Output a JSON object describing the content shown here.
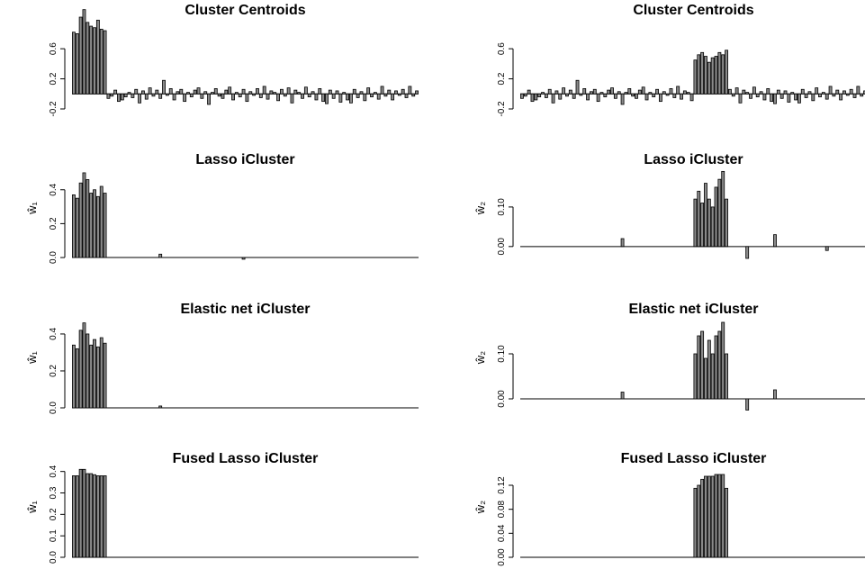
{
  "chart_data": [
    {
      "type": "bar",
      "title": "Cluster Centroids",
      "color": "#8a8a8a",
      "ylim": [
        -0.2,
        1.14
      ],
      "yticks": [
        -0.2,
        0.2,
        0.6
      ],
      "values": [
        0.82,
        0.8,
        1.02,
        1.12,
        0.95,
        0.9,
        0.88,
        0.98,
        0.86,
        0.84,
        -0.06,
        -0.03,
        0.05,
        -0.1,
        -0.08,
        -0.04,
        0.02,
        -0.05,
        0.06,
        -0.12,
        0.04,
        -0.07,
        0.08,
        -0.03,
        0.05,
        -0.06,
        0.18,
        -0.02,
        0.07,
        -0.08,
        0.03,
        0.06,
        -0.1,
        0.02,
        -0.04,
        0.05,
        0.08,
        -0.06,
        0.03,
        -0.14,
        0.02,
        0.07,
        -0.03,
        -0.06,
        0.05,
        0.09,
        -0.08,
        0.02,
        -0.04,
        0.06,
        -0.1,
        0.03,
        -0.02,
        0.07,
        -0.05,
        0.1,
        -0.07,
        0.04,
        0.02,
        -0.09,
        0.06,
        -0.03,
        0.08,
        -0.12,
        0.05,
        0.02,
        -0.06,
        0.09,
        -0.04,
        0.03,
        -0.08,
        0.07,
        -0.1,
        -0.13,
        0.05,
        -0.06,
        0.04,
        -0.11,
        0.02,
        -0.08,
        -0.12,
        0.06,
        -0.05,
        0.03,
        -0.09,
        0.08,
        -0.04,
        0.02,
        -0.07,
        0.1,
        -0.03,
        0.05,
        -0.08,
        0.04,
        -0.02,
        0.06,
        -0.05,
        0.1,
        -0.03,
        0.04
      ]
    },
    {
      "type": "bar",
      "title": "Cluster Centroids",
      "color": "#8a8a8a",
      "ylim": [
        -0.2,
        1.14
      ],
      "yticks": [
        -0.2,
        0.2,
        0.6
      ],
      "values": [
        -0.06,
        -0.03,
        0.05,
        -0.1,
        -0.08,
        -0.04,
        0.02,
        -0.05,
        0.06,
        -0.12,
        0.04,
        -0.07,
        0.08,
        -0.03,
        0.05,
        -0.06,
        0.18,
        -0.02,
        0.07,
        -0.08,
        0.03,
        0.06,
        -0.1,
        0.02,
        -0.04,
        0.05,
        0.08,
        -0.06,
        0.03,
        -0.14,
        0.02,
        0.07,
        -0.03,
        -0.06,
        0.05,
        0.09,
        -0.08,
        0.02,
        -0.04,
        0.06,
        -0.1,
        0.03,
        -0.02,
        0.07,
        -0.05,
        0.1,
        -0.07,
        0.04,
        0.02,
        -0.09,
        0.45,
        0.52,
        0.55,
        0.5,
        0.42,
        0.48,
        0.5,
        0.55,
        0.52,
        0.58,
        0.06,
        -0.03,
        0.08,
        -0.12,
        0.05,
        0.02,
        -0.06,
        0.09,
        -0.04,
        0.03,
        -0.08,
        0.07,
        -0.1,
        -0.13,
        0.05,
        -0.06,
        0.04,
        -0.11,
        0.02,
        -0.08,
        -0.12,
        0.06,
        -0.05,
        0.03,
        -0.09,
        0.08,
        -0.04,
        0.02,
        -0.07,
        0.1,
        -0.03,
        0.05,
        -0.08,
        0.04,
        -0.02,
        0.06,
        -0.05,
        0.1,
        -0.03,
        0.04
      ]
    },
    {
      "type": "bar",
      "title": "Lasso iCluster",
      "ylabel": "ŵ₁",
      "color": "#8a8a8a",
      "ylim": [
        -0.005,
        0.59
      ],
      "yticks": [
        {
          "value": 0,
          "label": "0.0"
        },
        0.2,
        0.4
      ],
      "values": [
        0.37,
        0.35,
        0.44,
        0.5,
        0.46,
        0.38,
        0.4,
        0.36,
        0.42,
        0.38,
        0,
        0,
        0,
        0,
        0,
        0,
        0,
        0,
        0,
        0,
        0,
        0,
        0,
        0,
        0,
        0.02,
        0,
        0,
        0,
        0,
        0,
        0,
        0,
        0,
        0,
        0,
        0,
        0,
        0,
        0,
        0,
        0,
        0,
        0,
        0,
        0,
        0,
        0,
        0,
        -0.01,
        0,
        0,
        0,
        0,
        0,
        0,
        0,
        0,
        0,
        0,
        0,
        0,
        0,
        0,
        0,
        0,
        0,
        0,
        0,
        0,
        0,
        0,
        0,
        0,
        0,
        0,
        0,
        0,
        0,
        0,
        0,
        0,
        0,
        0,
        0,
        0,
        0,
        0,
        0,
        0,
        0,
        0,
        0,
        0,
        0,
        0,
        0,
        0,
        0,
        0
      ]
    },
    {
      "type": "bar",
      "title": "Lasso iCluster",
      "ylabel": "ŵ₂",
      "color": "#8a8a8a",
      "ylim": [
        -0.03,
        0.225
      ],
      "yticks": [
        {
          "value": 0,
          "label": "0.00"
        },
        {
          "value": 0.1,
          "label": "0.10"
        }
      ],
      "values": [
        0,
        0,
        0,
        0,
        0,
        0,
        0,
        0,
        0,
        0,
        0,
        0,
        0,
        0,
        0,
        0,
        0,
        0,
        0,
        0,
        0,
        0,
        0,
        0,
        0,
        0,
        0,
        0,
        0,
        0.02,
        0,
        0,
        0,
        0,
        0,
        0,
        0,
        0,
        0,
        0,
        0,
        0,
        0,
        0,
        0,
        0,
        0,
        0,
        0,
        0,
        0.12,
        0.14,
        0.11,
        0.16,
        0.12,
        0.1,
        0.15,
        0.17,
        0.19,
        0.12,
        0,
        0,
        0,
        0,
        0,
        -0.03,
        0,
        0,
        0,
        0,
        0,
        0,
        0,
        0.03,
        0,
        0,
        0,
        0,
        0,
        0,
        0,
        0,
        0,
        0,
        0,
        0,
        0,
        0,
        -0.01,
        0,
        0,
        0,
        0,
        0,
        0,
        0,
        0,
        0,
        0,
        0
      ]
    },
    {
      "type": "bar",
      "title": "Elastic net iCluster",
      "ylabel": "ŵ₁",
      "color": "#8a8a8a",
      "ylim": [
        0,
        0.546
      ],
      "yticks": [
        {
          "value": 0,
          "label": "0.0"
        },
        0.2,
        0.4
      ],
      "values": [
        0.34,
        0.32,
        0.42,
        0.46,
        0.4,
        0.34,
        0.37,
        0.33,
        0.38,
        0.35,
        0,
        0,
        0,
        0,
        0,
        0,
        0,
        0,
        0,
        0,
        0,
        0,
        0,
        0,
        0,
        0.01,
        0,
        0,
        0,
        0,
        0,
        0,
        0,
        0,
        0,
        0,
        0,
        0,
        0,
        0,
        0,
        0,
        0,
        0,
        0,
        0,
        0,
        0,
        0,
        0,
        0,
        0,
        0,
        0,
        0,
        0,
        0,
        0,
        0,
        0,
        0,
        0,
        0,
        0,
        0,
        0,
        0,
        0,
        0,
        0,
        0,
        0,
        0,
        0,
        0,
        0,
        0,
        0,
        0,
        0,
        0,
        0,
        0,
        0,
        0,
        0,
        0,
        0,
        0,
        0,
        0,
        0,
        0,
        0,
        0,
        0,
        0,
        0,
        0,
        0
      ]
    },
    {
      "type": "bar",
      "title": "Elastic net iCluster",
      "ylabel": "ŵ₂",
      "color": "#8a8a8a",
      "ylim": [
        -0.02,
        0.204
      ],
      "yticks": [
        {
          "value": 0,
          "label": "0.00"
        },
        {
          "value": 0.1,
          "label": "0.10"
        }
      ],
      "values": [
        0,
        0,
        0,
        0,
        0,
        0,
        0,
        0,
        0,
        0,
        0,
        0,
        0,
        0,
        0,
        0,
        0,
        0,
        0,
        0,
        0,
        0,
        0,
        0,
        0,
        0,
        0,
        0,
        0,
        0.015,
        0,
        0,
        0,
        0,
        0,
        0,
        0,
        0,
        0,
        0,
        0,
        0,
        0,
        0,
        0,
        0,
        0,
        0,
        0,
        0,
        0.1,
        0.14,
        0.15,
        0.09,
        0.13,
        0.1,
        0.14,
        0.15,
        0.17,
        0.1,
        0,
        0,
        0,
        0,
        0,
        -0.025,
        0,
        0,
        0,
        0,
        0,
        0,
        0,
        0.02,
        0,
        0,
        0,
        0,
        0,
        0,
        0,
        0,
        0,
        0,
        0,
        0,
        0,
        0,
        0,
        0,
        0,
        0,
        0,
        0,
        0,
        0,
        0,
        0,
        0,
        0
      ]
    },
    {
      "type": "bar",
      "title": "Fused Lasso iCluster",
      "ylabel": "ŵ₁",
      "color": "#8a8a8a",
      "ylim": [
        0,
        0.47
      ],
      "yticks": [
        {
          "value": 0,
          "label": "0.0"
        },
        0.1,
        0.2,
        0.3,
        0.4
      ],
      "values": [
        0.38,
        0.38,
        0.41,
        0.41,
        0.39,
        0.39,
        0.385,
        0.38,
        0.38,
        0.38,
        0,
        0,
        0,
        0,
        0,
        0,
        0,
        0,
        0,
        0,
        0,
        0,
        0,
        0,
        0,
        0,
        0,
        0,
        0,
        0,
        0,
        0,
        0,
        0,
        0,
        0,
        0,
        0,
        0,
        0,
        0,
        0,
        0,
        0,
        0,
        0,
        0,
        0,
        0,
        0,
        0,
        0,
        0,
        0,
        0,
        0,
        0,
        0,
        0,
        0,
        0,
        0,
        0,
        0,
        0,
        0,
        0,
        0,
        0,
        0,
        0,
        0,
        0,
        0,
        0,
        0,
        0,
        0,
        0,
        0,
        0,
        0,
        0,
        0,
        0,
        0,
        0,
        0,
        0,
        0,
        0,
        0,
        0,
        0,
        0,
        0,
        0,
        0,
        0,
        0
      ]
    },
    {
      "type": "bar",
      "title": "Fused Lasso iCluster",
      "ylabel": "ŵ₂",
      "color": "#8a8a8a",
      "ylim": [
        0,
        0.168
      ],
      "yticks": [
        {
          "value": 0,
          "label": "0.00"
        },
        0.04,
        0.08,
        0.12
      ],
      "values": [
        0,
        0,
        0,
        0,
        0,
        0,
        0,
        0,
        0,
        0,
        0,
        0,
        0,
        0,
        0,
        0,
        0,
        0,
        0,
        0,
        0,
        0,
        0,
        0,
        0,
        0,
        0,
        0,
        0,
        0,
        0,
        0,
        0,
        0,
        0,
        0,
        0,
        0,
        0,
        0,
        0,
        0,
        0,
        0,
        0,
        0,
        0,
        0,
        0,
        0,
        0.115,
        0.12,
        0.13,
        0.135,
        0.135,
        0.135,
        0.138,
        0.138,
        0.138,
        0.115,
        0,
        0,
        0,
        0,
        0,
        0,
        0,
        0,
        0,
        0,
        0,
        0,
        0,
        0,
        0,
        0,
        0,
        0,
        0,
        0,
        0,
        0,
        0,
        0,
        0,
        0,
        0,
        0,
        0,
        0,
        0,
        0,
        0,
        0,
        0,
        0,
        0,
        0,
        0,
        0
      ]
    }
  ]
}
